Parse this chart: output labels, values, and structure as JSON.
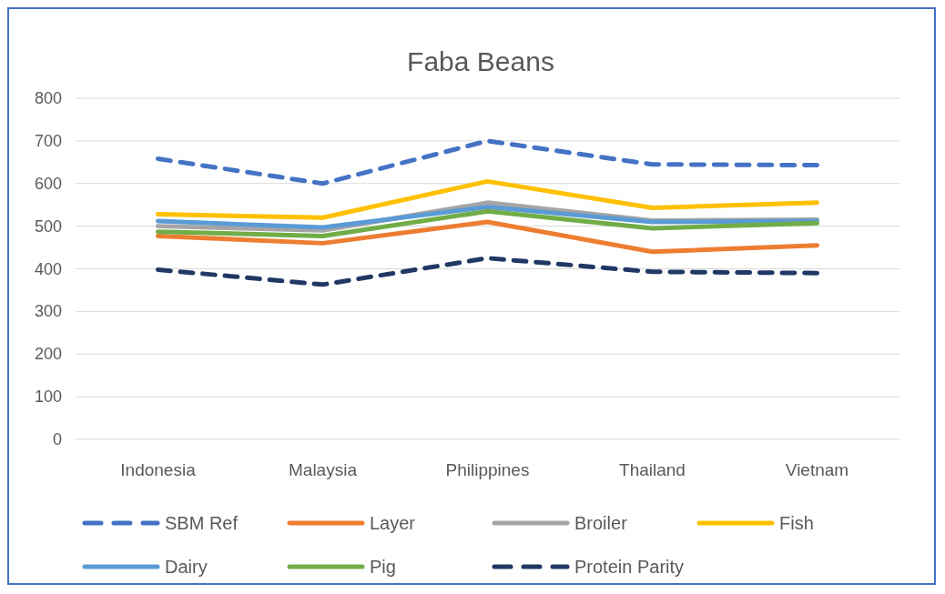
{
  "chart_data": {
    "type": "line",
    "title": "Faba Beans",
    "categories": [
      "Indonesia",
      "Malaysia",
      "Philippines",
      "Thailand",
      "Vietnam"
    ],
    "ylim": [
      0,
      800
    ],
    "yticks": [
      0,
      100,
      200,
      300,
      400,
      500,
      600,
      700,
      800
    ],
    "grid": "y",
    "legend": "bottom",
    "series": [
      {
        "name": "SBM Ref",
        "color": "#4472c4",
        "line_style": "dashed",
        "values": [
          658,
          600,
          700,
          645,
          643
        ]
      },
      {
        "name": "Layer",
        "color": "#ed7d31",
        "values": [
          477,
          460,
          510,
          440,
          455
        ]
      },
      {
        "name": "Broiler",
        "color": "#a5a5a5",
        "values": [
          500,
          490,
          555,
          513,
          515
        ]
      },
      {
        "name": "Fish",
        "color": "#ffc000",
        "values": [
          528,
          520,
          605,
          543,
          555
        ]
      },
      {
        "name": "Dairy",
        "color": "#5b9bd5",
        "values": [
          512,
          497,
          545,
          510,
          512
        ]
      },
      {
        "name": "Pig",
        "color": "#70ad47",
        "values": [
          487,
          477,
          535,
          495,
          507
        ]
      },
      {
        "name": "Protein Parity",
        "color": "#203864",
        "line_style": "dashed",
        "values": [
          398,
          363,
          425,
          393,
          390
        ]
      }
    ]
  }
}
